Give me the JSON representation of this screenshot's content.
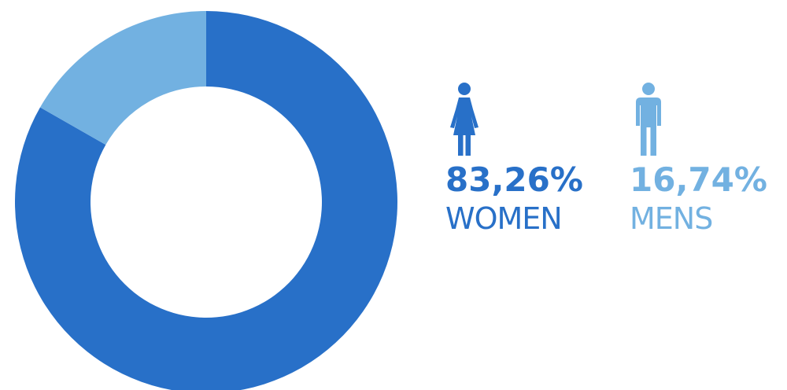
{
  "colors": {
    "women": "#2870c8",
    "men": "#72b1e1"
  },
  "icons": {
    "women": "woman-figure-icon",
    "men": "man-figure-icon"
  },
  "legend": {
    "women": {
      "value_label": "83,26%",
      "category_label": "WOMEN"
    },
    "men": {
      "value_label": "16,74%",
      "category_label": "MENS"
    }
  },
  "chart_data": {
    "type": "pie",
    "donut": true,
    "start_angle_deg": 0,
    "direction": "clockwise",
    "categories": [
      "WOMEN",
      "MENS"
    ],
    "values": [
      83.26,
      16.74
    ],
    "unit": "%",
    "colors": [
      "#2870c8",
      "#72b1e1"
    ],
    "legend_position": "right"
  }
}
